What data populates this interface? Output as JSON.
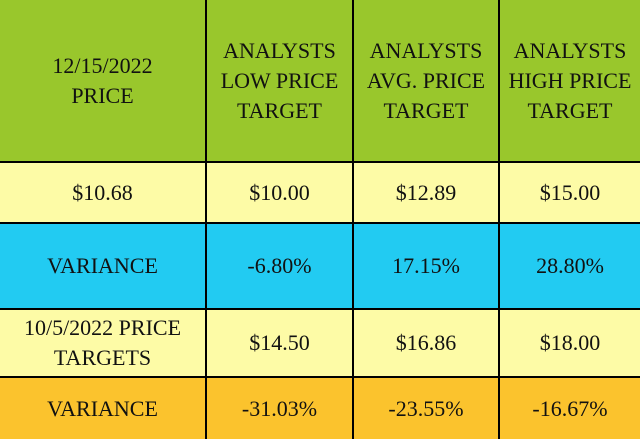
{
  "table": {
    "header": [
      [
        "12/15/2022",
        "PRICE"
      ],
      [
        "ANALYSTS",
        "LOW PRICE",
        "TARGET"
      ],
      [
        "ANALYSTS",
        "AVG. PRICE",
        "TARGET"
      ],
      [
        "ANALYSTS",
        "HIGH PRICE",
        "TARGET"
      ]
    ],
    "rows": [
      [
        [
          "$10.68"
        ],
        [
          "$10.00"
        ],
        [
          "$12.89"
        ],
        [
          "$15.00"
        ]
      ],
      [
        [
          "VARIANCE"
        ],
        [
          "-6.80%"
        ],
        [
          "17.15%"
        ],
        [
          "28.80%"
        ]
      ],
      [
        [
          "10/5/2022 PRICE",
          "TARGETS"
        ],
        [
          "$14.50"
        ],
        [
          "$16.86"
        ],
        [
          "$18.00"
        ]
      ],
      [
        [
          "VARIANCE"
        ],
        [
          "-31.03%"
        ],
        [
          "-23.55%"
        ],
        [
          "-16.67%"
        ]
      ]
    ]
  }
}
